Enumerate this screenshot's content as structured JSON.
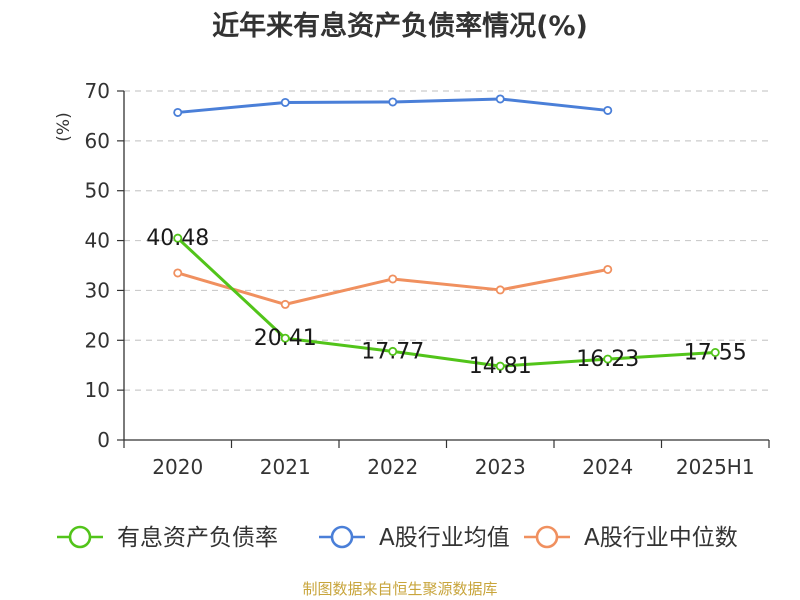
{
  "chart_data": {
    "type": "line",
    "title": "近年来有息资产负债率情况(%)",
    "ylabel": "(%)",
    "xlabel": "",
    "categories": [
      "2020",
      "2021",
      "2022",
      "2023",
      "2024",
      "2025H1"
    ],
    "ylim": [
      0,
      70
    ],
    "yticks": [
      0,
      10,
      20,
      30,
      40,
      50,
      60,
      70
    ],
    "grid": true,
    "legend_position": "bottom",
    "series": [
      {
        "name": "有息资产负债率",
        "color": "#52c41a",
        "values": [
          40.48,
          20.41,
          17.77,
          14.81,
          16.23,
          17.55
        ],
        "labels": [
          "40.48",
          "20.41",
          "17.77",
          "14.81",
          "16.23",
          "17.55"
        ]
      },
      {
        "name": "A股行业均值",
        "color": "#4a7fd8",
        "values": [
          65.7,
          67.7,
          67.8,
          68.4,
          66.1,
          null
        ]
      },
      {
        "name": "A股行业中位数",
        "color": "#f0905f",
        "values": [
          33.5,
          27.2,
          32.3,
          30.1,
          34.2,
          null
        ]
      }
    ]
  },
  "source_text": "制图数据来自恒生聚源数据库"
}
